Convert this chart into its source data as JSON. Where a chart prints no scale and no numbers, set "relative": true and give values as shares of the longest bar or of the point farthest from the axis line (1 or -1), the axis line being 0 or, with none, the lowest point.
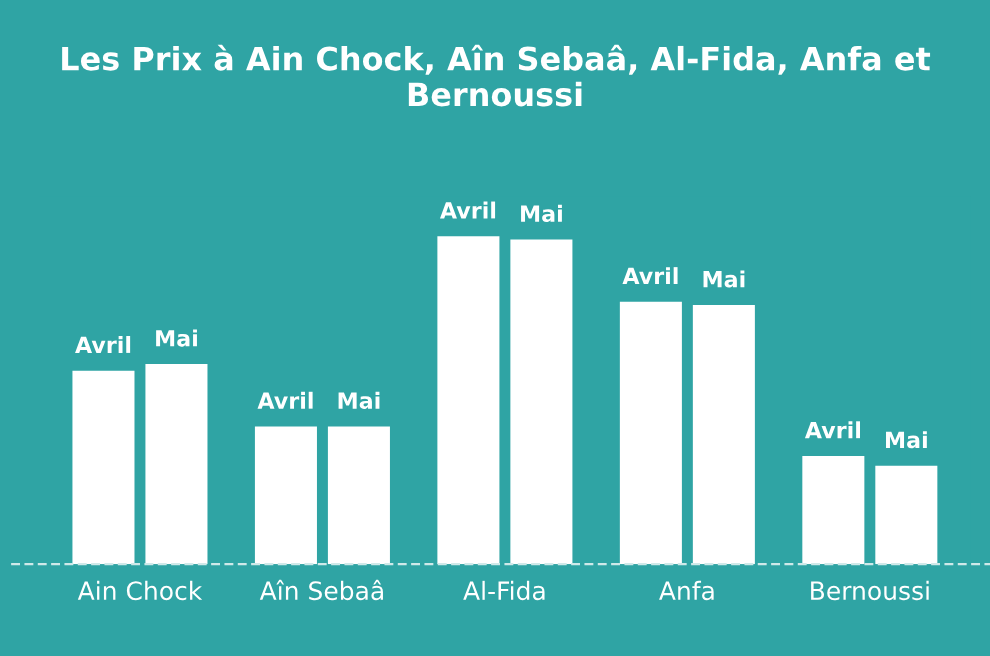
{
  "chart_data": {
    "type": "bar",
    "title": "Les Prix à Ain Chock, Aîn Sebaâ, Al-Fida, Anfa et Bernoussi",
    "relative": true,
    "categories": [
      "Ain Chock",
      "Aîn Sebaâ",
      "Al-Fida",
      "Anfa",
      "Bernoussi"
    ],
    "series": [
      {
        "name": "Avril",
        "color": "#ffffff",
        "values": [
          0.59,
          0.42,
          1.0,
          0.8,
          0.33
        ]
      },
      {
        "name": "Mai",
        "color": "#ffffff",
        "values": [
          0.61,
          0.42,
          0.99,
          0.79,
          0.3
        ]
      }
    ],
    "grid": false,
    "legend": false
  }
}
